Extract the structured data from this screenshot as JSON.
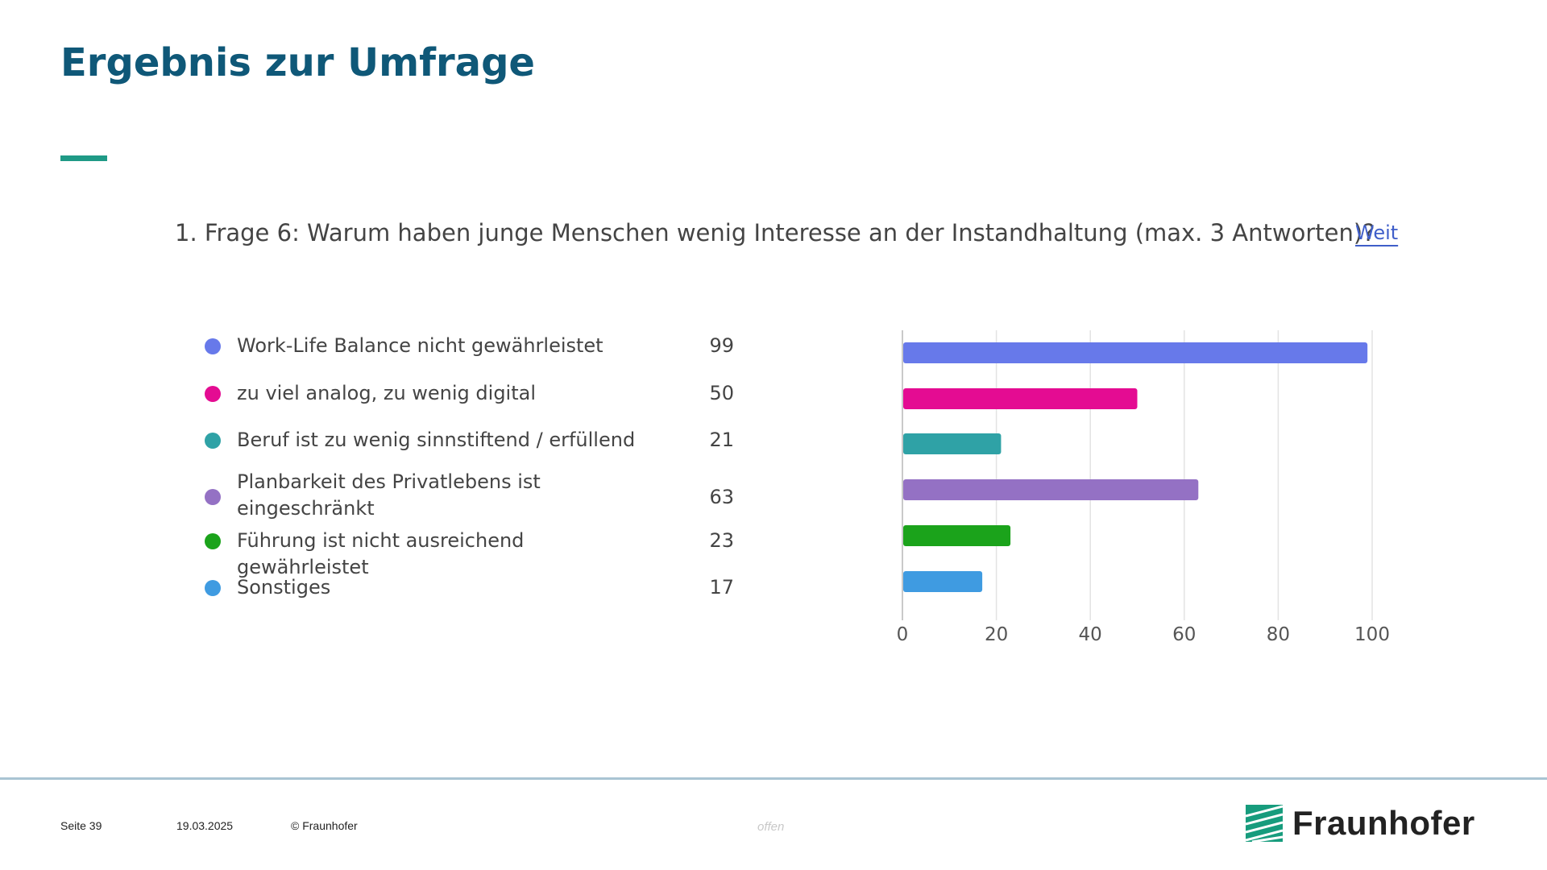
{
  "slide": {
    "title": "Ergebnis zur Umfrage",
    "question": "1. Frage 6: Warum haben junge Menschen wenig Interesse an der Instandhaltung (max. 3 Antworten)?",
    "link_label": "Weit"
  },
  "chart_data": {
    "type": "bar",
    "orientation": "horizontal",
    "categories": [
      "Work-Life Balance nicht gewährleistet",
      "zu viel analog, zu wenig digital",
      "Beruf ist zu wenig sinnstiftend / erfüllend",
      "Planbarkeit des Privatlebens ist eingeschränkt",
      "Führung ist nicht ausreichend gewährleistet",
      "Sonstiges"
    ],
    "values": [
      99,
      50,
      21,
      63,
      23,
      17
    ],
    "colors": [
      "#6779ea",
      "#e40c92",
      "#2fa2a6",
      "#9471c4",
      "#1ba31b",
      "#3f9be1"
    ],
    "xlim": [
      0,
      100
    ],
    "xticks": [
      0,
      20,
      40,
      60,
      80,
      100
    ],
    "grid": true,
    "legend_position": "left"
  },
  "footer": {
    "page": "Seite 39",
    "date": "19.03.2025",
    "copyright": "© Fraunhofer",
    "classification": "offen",
    "logo_text": "Fraunhofer",
    "logo_color": "#179c7d"
  }
}
